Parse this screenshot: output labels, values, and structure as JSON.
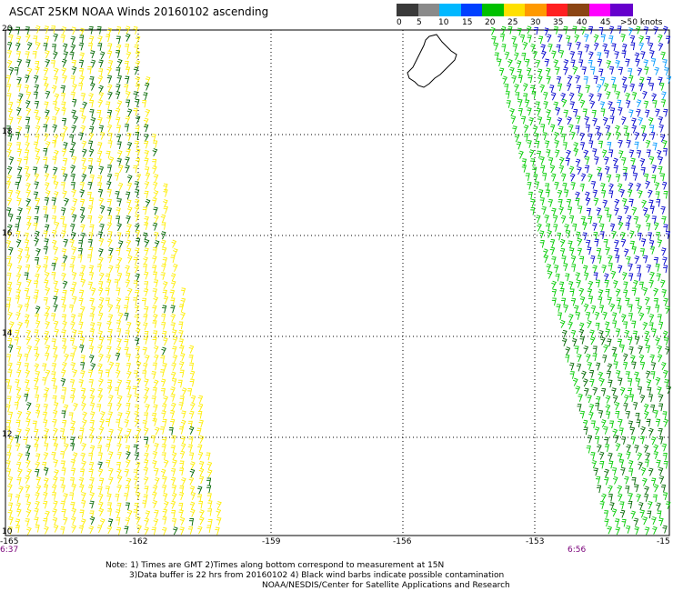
{
  "title": "ASCAT 25KM NOAA Winds 20160102 ascending",
  "lat_labels": [
    "20",
    "18",
    "16",
    "14",
    "12",
    "10"
  ],
  "lon_labels": [
    "-165",
    "-162",
    "-159",
    "-156",
    "-153",
    "-15"
  ],
  "times": {
    "left": "6:37",
    "right": "6:56"
  },
  "colorbar": {
    "colors": [
      "#3a3a3a",
      "#8a8a8a",
      "#00b8ff",
      "#0040ff",
      "#00c000",
      "#ffe000",
      "#ff9900",
      "#ff2020",
      "#8b4513",
      "#ff00ff",
      "#6600cc"
    ],
    "ticks": [
      "0",
      "5",
      "10",
      "15",
      "20",
      "25",
      "30",
      "35",
      "40",
      "45",
      ">50 knots"
    ]
  },
  "notes": [
    "Note: 1) Times are GMT 2)Times along bottom correspond to measurement at 15N",
    "3)Data buffer is 22 hrs from 20160102 4) Black wind barbs indicate possible contamination",
    "NOAA/NESDIS/Center for Satellite Applications and Research"
  ],
  "wind_colors": {
    "yellow": "#ffee00",
    "dark_green": "#006600",
    "green": "#00cc00",
    "blue": "#0000cc",
    "light_blue": "#0099ff"
  }
}
